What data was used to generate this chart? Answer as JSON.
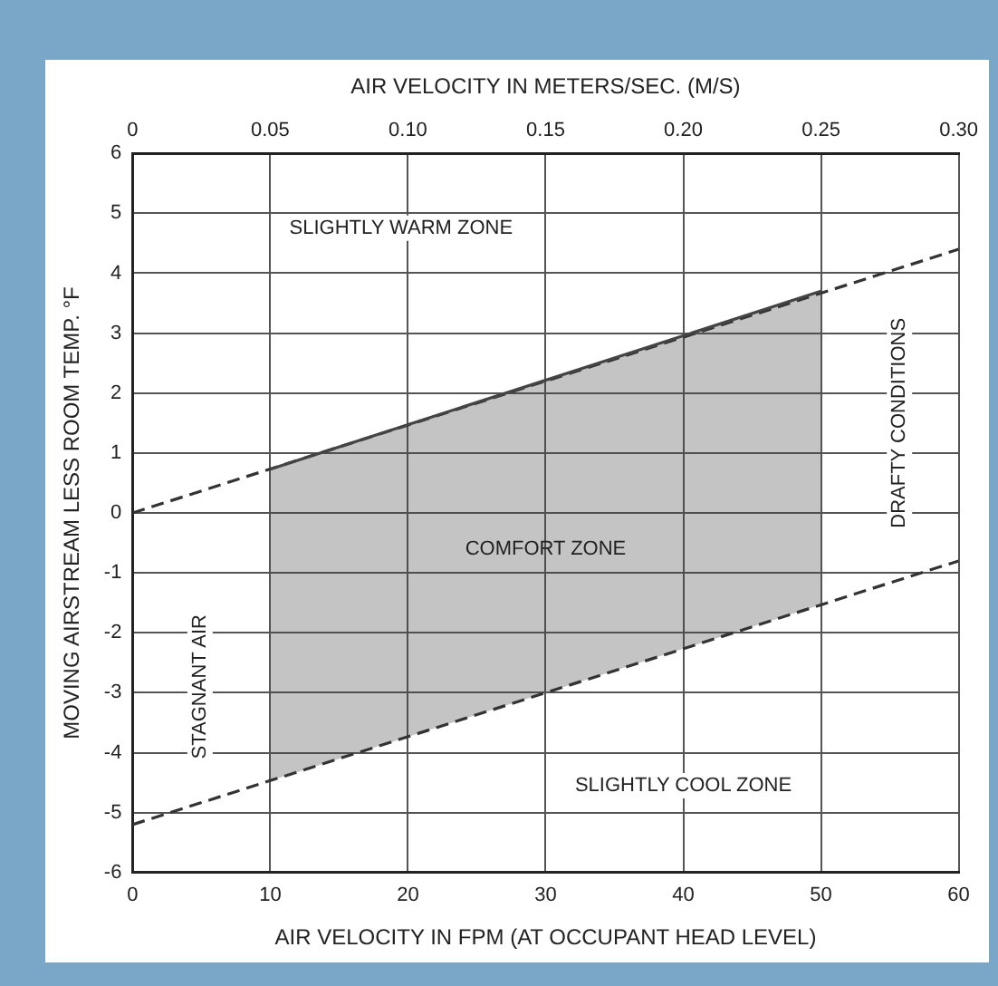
{
  "chart_data": {
    "type": "line",
    "xlabel": "AIR VELOCITY IN FPM (AT OCCUPANT HEAD LEVEL)",
    "ylabel": "MOVING AIRSTREAM LESS ROOM TEMP. °F",
    "x2label": "AIR VELOCITY IN METERS/SEC. (M/S)",
    "xlim": [
      0,
      60
    ],
    "xticks": [
      0,
      10,
      20,
      30,
      40,
      50,
      60
    ],
    "ylim": [
      -6,
      6
    ],
    "yticks": [
      -6,
      -5,
      -4,
      -3,
      -2,
      -1,
      0,
      1,
      2,
      3,
      4,
      5,
      6
    ],
    "x2lim": [
      0,
      0.3
    ],
    "x2ticks": [
      0,
      0.05,
      {
        "value": 0.1,
        "label": "0.10"
      },
      0.15,
      {
        "value": 0.2,
        "label": "0.20"
      },
      0.25,
      {
        "value": 0.3,
        "label": "0.30"
      }
    ],
    "grid": true,
    "series": [
      {
        "type": "line",
        "color": "#444444",
        "x": [
          10,
          50
        ],
        "values": [
          0.73,
          3.7
        ],
        "lower": [
          -4.47,
          -1.53
        ],
        "upper": [
          0.73,
          3.7
        ]
      },
      {
        "type": "line",
        "color": "#333333",
        "x": [
          0,
          60
        ],
        "values": [
          0,
          4.4
        ],
        "line_style": "dashed"
      },
      {
        "type": "line",
        "color": "#333333",
        "x": [
          0,
          60
        ],
        "values": [
          -5.2,
          -0.8
        ],
        "line_style": "dashed"
      }
    ],
    "annotations": [
      "SLIGHTLY WARM ZONE",
      "COMFORT ZONE",
      "STAGNANT AIR",
      "DRAFTY CONDITIONS",
      "SLIGHTLY COOL ZONE"
    ]
  }
}
